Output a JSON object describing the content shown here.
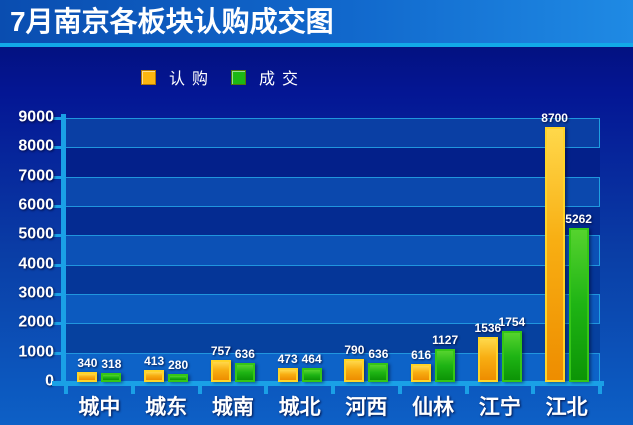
{
  "title": "7月南京各板块认购成交图",
  "chart_data": {
    "type": "bar",
    "title": "7月南京各板块认购成交图",
    "categories": [
      "城中",
      "城东",
      "城南",
      "城北",
      "河西",
      "仙林",
      "江宁",
      "江北"
    ],
    "series": [
      {
        "name": "认购",
        "color": "#fdb60f",
        "values": [
          340,
          413,
          757,
          473,
          790,
          616,
          1536,
          8700
        ]
      },
      {
        "name": "成交",
        "color": "#1cb814",
        "values": [
          318,
          280,
          636,
          464,
          636,
          1127,
          1754,
          5262
        ]
      }
    ],
    "ylim": [
      0,
      9000
    ],
    "yticks": [
      0,
      1000,
      2000,
      3000,
      4000,
      5000,
      6000,
      7000,
      8000,
      9000
    ],
    "grid": true,
    "value_labels": true,
    "legend_position": "top-left"
  },
  "colors": {
    "title_bar_start": "#0a4db0",
    "title_bar_end": "#1f8ae4",
    "separator": "#12a9e8",
    "axis": "#1aa0e6",
    "gridline": "#2096de",
    "background_top": "#020d6e",
    "background_bottom": "#0d60c6",
    "bar_subscribe": "#fdb60f",
    "bar_deal": "#1cb814",
    "text": "#ffffff"
  }
}
